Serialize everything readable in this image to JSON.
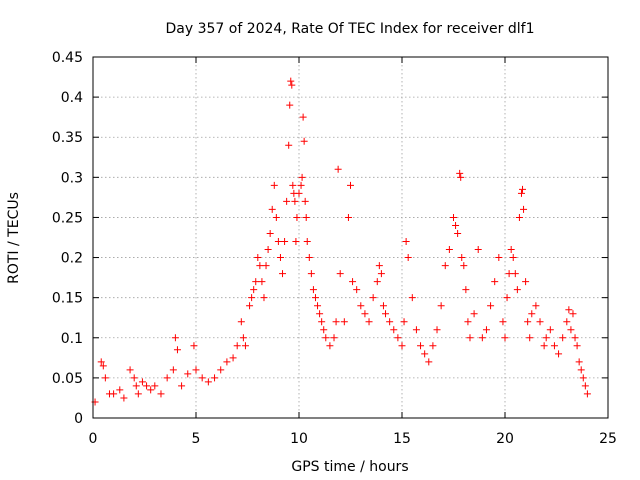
{
  "chart_data": {
    "type": "scatter",
    "title": "Day 357 of 2024, Rate Of TEC Index for receiver dlf1",
    "xlabel": "GPS time / hours",
    "ylabel": "ROTI / TECUs",
    "xlim": [
      0,
      25
    ],
    "ylim": [
      0,
      0.45
    ],
    "xticks": [
      "0",
      "5",
      "10",
      "15",
      "20",
      "25"
    ],
    "yticks": [
      "0",
      "0.05",
      "0.1",
      "0.15",
      "0.2",
      "0.25",
      "0.3",
      "0.35",
      "0.4",
      "0.45"
    ],
    "xtick_values": [
      0,
      5,
      10,
      15,
      20,
      25
    ],
    "ytick_values": [
      0,
      0.05,
      0.1,
      0.15,
      0.2,
      0.25,
      0.3,
      0.35,
      0.4,
      0.45
    ],
    "grid": true,
    "marker": "+",
    "color": "#ff0000",
    "series": [
      {
        "x": [
          0.1,
          0.4,
          0.5,
          0.6,
          0.8,
          1.0,
          1.3,
          1.5,
          1.8,
          2.0,
          2.1,
          2.2,
          2.4,
          2.6,
          2.8,
          3.0,
          3.3,
          3.6,
          3.9,
          4.0,
          4.1,
          4.3,
          4.6,
          4.9,
          5.0,
          5.3,
          5.6,
          5.9,
          6.2,
          6.5,
          6.8,
          7.0,
          7.2,
          7.3,
          7.4,
          7.6,
          7.7,
          7.8,
          7.9,
          8.0,
          8.1,
          8.2,
          8.3,
          8.4,
          8.5,
          8.6,
          8.7,
          8.8,
          8.9,
          9.0,
          9.1,
          9.2,
          9.3,
          9.4,
          9.5,
          9.55,
          9.6,
          9.65,
          9.7,
          9.75,
          9.8,
          9.85,
          9.9,
          10.0,
          10.1,
          10.15,
          10.2,
          10.25,
          10.3,
          10.35,
          10.4,
          10.5,
          10.6,
          10.7,
          10.8,
          10.9,
          11.0,
          11.1,
          11.2,
          11.3,
          11.5,
          11.7,
          11.8,
          11.9,
          12.0,
          12.2,
          12.4,
          12.5,
          12.6,
          12.8,
          13.0,
          13.2,
          13.4,
          13.6,
          13.8,
          13.9,
          14.0,
          14.1,
          14.2,
          14.4,
          14.6,
          14.8,
          15.0,
          15.1,
          15.2,
          15.3,
          15.5,
          15.7,
          15.9,
          16.1,
          16.3,
          16.5,
          16.7,
          16.9,
          17.1,
          17.3,
          17.5,
          17.6,
          17.7,
          17.8,
          17.85,
          17.9,
          18.0,
          18.1,
          18.2,
          18.3,
          18.5,
          18.7,
          18.9,
          19.1,
          19.3,
          19.5,
          19.7,
          19.9,
          20.0,
          20.1,
          20.2,
          20.3,
          20.4,
          20.5,
          20.6,
          20.7,
          20.8,
          20.85,
          20.9,
          21.0,
          21.1,
          21.2,
          21.3,
          21.5,
          21.7,
          21.9,
          22.0,
          22.2,
          22.4,
          22.6,
          22.8,
          23.0,
          23.1,
          23.2,
          23.3,
          23.4,
          23.5,
          23.6,
          23.7,
          23.8,
          23.9,
          24.0
        ],
        "y": [
          0.02,
          0.07,
          0.065,
          0.05,
          0.03,
          0.03,
          0.035,
          0.025,
          0.06,
          0.05,
          0.04,
          0.03,
          0.045,
          0.04,
          0.035,
          0.04,
          0.03,
          0.05,
          0.06,
          0.1,
          0.085,
          0.04,
          0.055,
          0.09,
          0.06,
          0.05,
          0.045,
          0.05,
          0.06,
          0.07,
          0.075,
          0.09,
          0.12,
          0.1,
          0.09,
          0.14,
          0.15,
          0.16,
          0.17,
          0.2,
          0.19,
          0.17,
          0.15,
          0.19,
          0.21,
          0.23,
          0.26,
          0.29,
          0.25,
          0.22,
          0.2,
          0.18,
          0.22,
          0.27,
          0.34,
          0.39,
          0.42,
          0.415,
          0.29,
          0.28,
          0.27,
          0.22,
          0.25,
          0.28,
          0.29,
          0.3,
          0.375,
          0.345,
          0.27,
          0.25,
          0.22,
          0.2,
          0.18,
          0.16,
          0.15,
          0.14,
          0.13,
          0.12,
          0.11,
          0.1,
          0.09,
          0.1,
          0.12,
          0.31,
          0.18,
          0.12,
          0.25,
          0.29,
          0.17,
          0.16,
          0.14,
          0.13,
          0.12,
          0.15,
          0.17,
          0.19,
          0.18,
          0.14,
          0.13,
          0.12,
          0.11,
          0.1,
          0.09,
          0.12,
          0.22,
          0.2,
          0.15,
          0.11,
          0.09,
          0.08,
          0.07,
          0.09,
          0.11,
          0.14,
          0.19,
          0.21,
          0.25,
          0.24,
          0.23,
          0.305,
          0.3,
          0.2,
          0.19,
          0.16,
          0.12,
          0.1,
          0.13,
          0.21,
          0.1,
          0.11,
          0.14,
          0.17,
          0.2,
          0.12,
          0.1,
          0.15,
          0.18,
          0.21,
          0.2,
          0.18,
          0.16,
          0.25,
          0.28,
          0.285,
          0.26,
          0.17,
          0.12,
          0.1,
          0.13,
          0.14,
          0.12,
          0.09,
          0.1,
          0.11,
          0.09,
          0.08,
          0.1,
          0.12,
          0.135,
          0.11,
          0.13,
          0.1,
          0.09,
          0.07,
          0.06,
          0.05,
          0.04,
          0.03
        ]
      }
    ]
  }
}
